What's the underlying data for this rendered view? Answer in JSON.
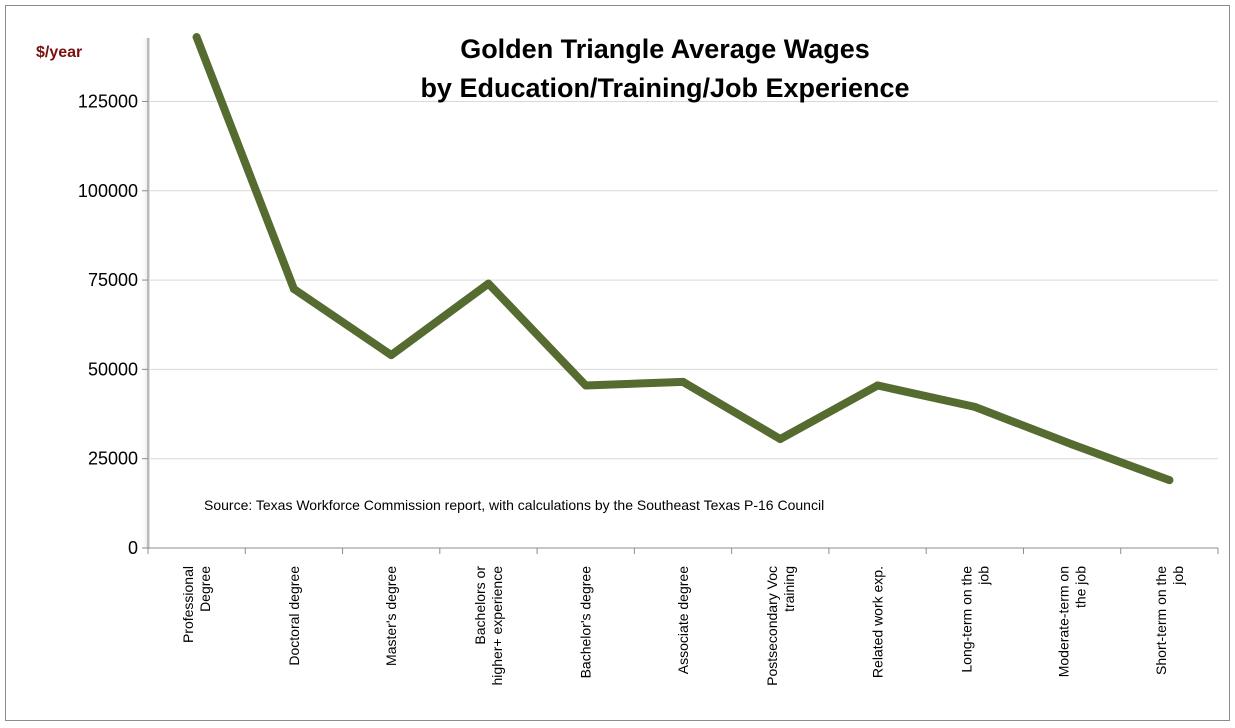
{
  "chart_data": {
    "type": "line",
    "title_lines": [
      "Golden Triangle Average Wages",
      "by Education/Training/Job Experience"
    ],
    "ylabel": "$/year",
    "source_note": "Source:  Texas Workforce Commission report, with calculations by the Southeast Texas P-16 Council",
    "ylim": [
      0,
      145000
    ],
    "yticks": [
      "0",
      "25000",
      "50000",
      "75000",
      "100000",
      "125000"
    ],
    "grid": true,
    "categories": [
      [
        "Professional",
        "Degree"
      ],
      [
        "Doctoral degree"
      ],
      [
        "Master's degree"
      ],
      [
        "Bachelors or",
        "higher+ experience"
      ],
      [
        "Bachelor's degree"
      ],
      [
        "Associate degree"
      ],
      [
        "Postsecondary Voc",
        "training"
      ],
      [
        "Related work exp."
      ],
      [
        "Long-term on the",
        "job"
      ],
      [
        "Moderate-term on",
        "the job"
      ],
      [
        "Short-term on the",
        "job"
      ]
    ],
    "series": [
      {
        "values": [
          143000,
          72500,
          54000,
          74000,
          45500,
          46500,
          30500,
          45500,
          39500,
          29000,
          19000
        ],
        "color": "#556b2f"
      }
    ]
  }
}
